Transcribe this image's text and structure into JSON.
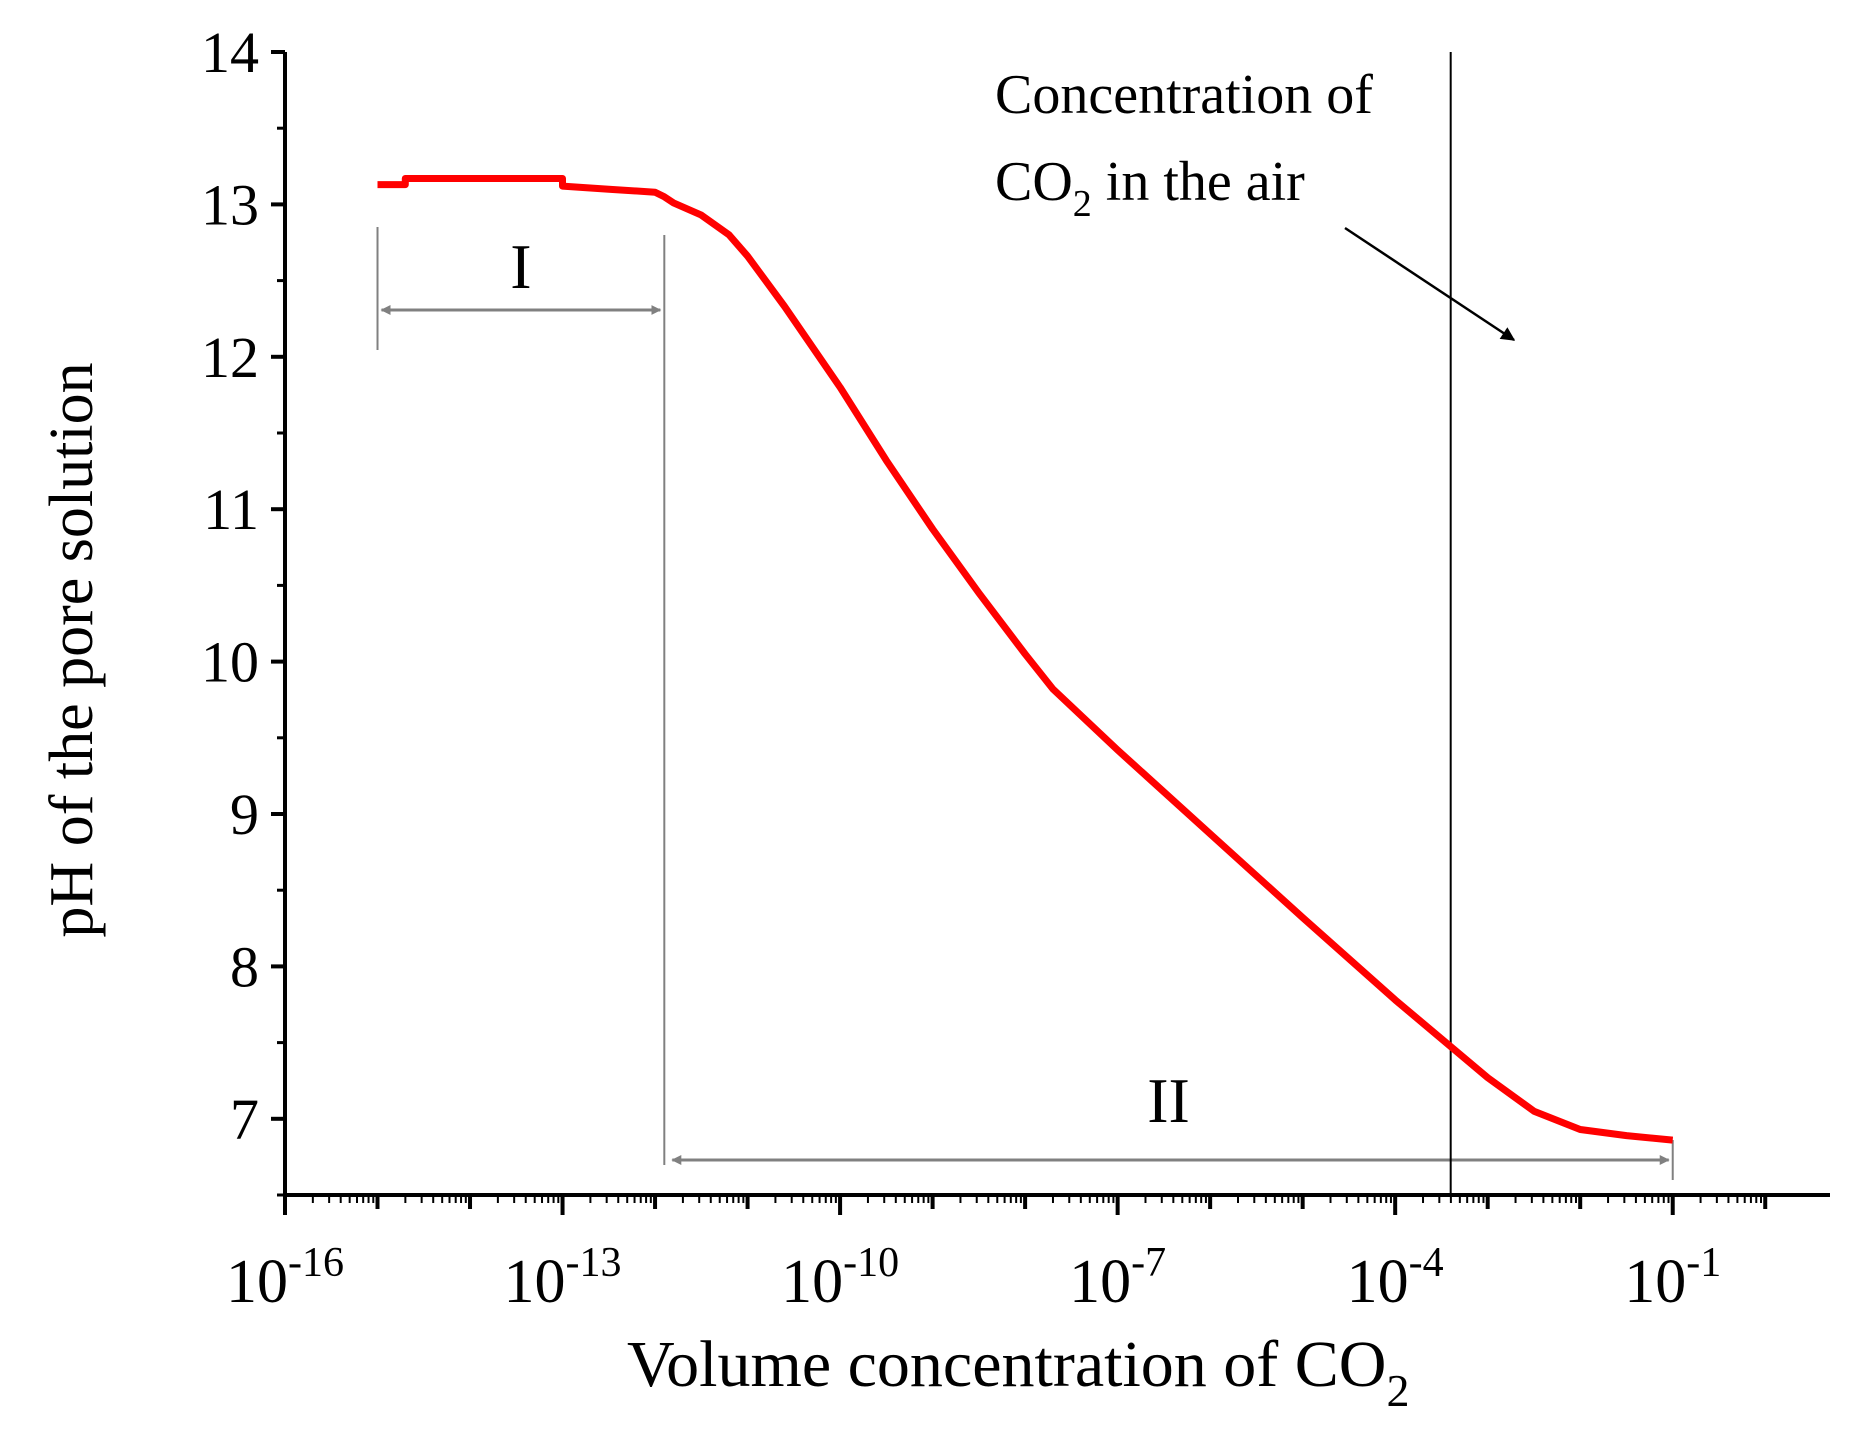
{
  "chart_data": {
    "type": "line",
    "xscale": "log10",
    "xlabel": "Volume concentration of CO",
    "xlabel_sub": "2",
    "ylabel": "pH of the pore solution",
    "xlim_log10": [
      -16,
      0.7
    ],
    "ylim": [
      6.5,
      14
    ],
    "x_ticks": [
      {
        "base": "10",
        "exp": "-16",
        "log10": -16
      },
      {
        "base": "10",
        "exp": "-13",
        "log10": -13
      },
      {
        "base": "10",
        "exp": "-10",
        "log10": -10
      },
      {
        "base": "10",
        "exp": "-7",
        "log10": -7
      },
      {
        "base": "10",
        "exp": "-4",
        "log10": -4
      },
      {
        "base": "10",
        "exp": "-1",
        "log10": -1
      }
    ],
    "y_ticks": [
      "7",
      "8",
      "9",
      "10",
      "11",
      "12",
      "13",
      "14"
    ],
    "series": [
      {
        "name": "pH",
        "color": "#ff0000",
        "points_log10x": [
          [
            -15.0,
            13.13
          ],
          [
            -14.7,
            13.13
          ],
          [
            -14.7,
            13.17
          ],
          [
            -13.0,
            13.17
          ],
          [
            -13.0,
            13.12
          ],
          [
            -12.5,
            13.1
          ],
          [
            -12.0,
            13.08
          ],
          [
            -11.9,
            13.05
          ],
          [
            -11.8,
            13.01
          ],
          [
            -11.5,
            12.93
          ],
          [
            -11.2,
            12.8
          ],
          [
            -11.0,
            12.66
          ],
          [
            -10.6,
            12.33
          ],
          [
            -10.0,
            11.8
          ],
          [
            -9.5,
            11.32
          ],
          [
            -9.0,
            10.87
          ],
          [
            -8.5,
            10.45
          ],
          [
            -8.0,
            10.05
          ],
          [
            -7.7,
            9.82
          ],
          [
            -7.0,
            9.42
          ],
          [
            -6.0,
            8.87
          ],
          [
            -5.0,
            8.32
          ],
          [
            -4.0,
            7.78
          ],
          [
            -3.0,
            7.27
          ],
          [
            -2.5,
            7.05
          ],
          [
            -2.0,
            6.93
          ],
          [
            -1.5,
            6.89
          ],
          [
            -1.0,
            6.86
          ]
        ]
      }
    ],
    "reference_line": {
      "log10x": -3.4,
      "label": "Concentration of CO₂ in the air"
    },
    "annotation": {
      "line1": "Concentration of",
      "line2_prefix": "CO",
      "line2_sub": "2",
      "line2_suffix": " in the air"
    },
    "regions": [
      {
        "label": "I",
        "from_log10x": -15.0,
        "to_log10x": -11.9,
        "color": "#808080"
      },
      {
        "label": "II",
        "from_log10x": -11.9,
        "to_log10x": -1.0,
        "color": "#808080"
      }
    ]
  }
}
